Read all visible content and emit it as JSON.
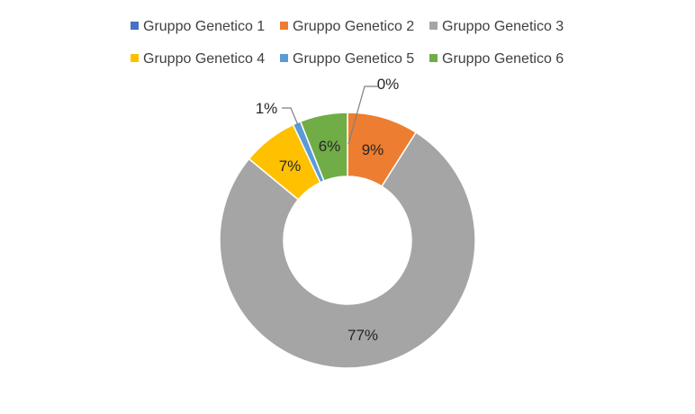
{
  "chart_data": {
    "type": "pie",
    "variant": "doughnut",
    "title": "",
    "legend": {
      "placement": "top"
    },
    "series": [
      {
        "name": "Gruppo Genetico 1",
        "value": 0,
        "label": "0%",
        "color": "#4472C4"
      },
      {
        "name": "Gruppo Genetico 2",
        "value": 9,
        "label": "9%",
        "color": "#ED7D31"
      },
      {
        "name": "Gruppo Genetico 3",
        "value": 77,
        "label": "77%",
        "color": "#A5A5A5"
      },
      {
        "name": "Gruppo Genetico 4",
        "value": 7,
        "label": "7%",
        "color": "#FFC000"
      },
      {
        "name": "Gruppo Genetico 5",
        "value": 1,
        "label": "1%",
        "color": "#5B9BD5"
      },
      {
        "name": "Gruppo Genetico 6",
        "value": 6,
        "label": "6%",
        "color": "#70AD47"
      }
    ]
  }
}
